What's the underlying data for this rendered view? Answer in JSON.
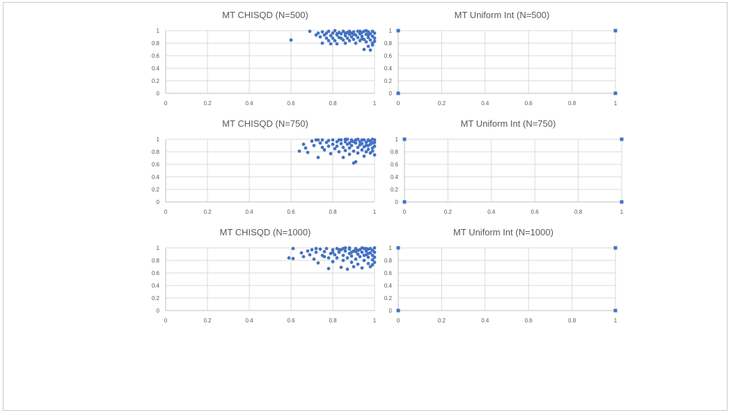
{
  "colors": {
    "marker": "#4472c4",
    "grid": "#d9d9d9",
    "axis": "#bfbfbf",
    "text": "#595959"
  },
  "chart_data": [
    {
      "type": "scatter",
      "title": "MT CHISQD (N=500)",
      "marker": "circle",
      "xlim": [
        0,
        1
      ],
      "ylim": [
        0,
        1
      ],
      "xticks": [
        "0",
        "0.2",
        "0.4",
        "0.6",
        "0.8",
        "1"
      ],
      "yticks": [
        "0",
        "0.2",
        "0.4",
        "0.6",
        "0.8",
        "1"
      ],
      "grid": true,
      "points": [
        [
          0.6,
          0.85
        ],
        [
          0.69,
          0.99
        ],
        [
          0.72,
          0.93
        ],
        [
          0.73,
          0.96
        ],
        [
          0.74,
          0.9
        ],
        [
          0.75,
          0.98
        ],
        [
          0.75,
          0.8
        ],
        [
          0.76,
          0.93
        ],
        [
          0.77,
          0.88
        ],
        [
          0.77,
          0.96
        ],
        [
          0.78,
          0.99
        ],
        [
          0.78,
          0.84
        ],
        [
          0.79,
          0.92
        ],
        [
          0.79,
          0.79
        ],
        [
          0.8,
          0.96
        ],
        [
          0.8,
          0.88
        ],
        [
          0.81,
          1.0
        ],
        [
          0.81,
          0.84
        ],
        [
          0.82,
          0.93
        ],
        [
          0.82,
          0.79
        ],
        [
          0.83,
          0.97
        ],
        [
          0.83,
          0.89
        ],
        [
          0.84,
          0.95
        ],
        [
          0.85,
          0.85
        ],
        [
          0.85,
          0.99
        ],
        [
          0.86,
          0.92
        ],
        [
          0.86,
          0.8
        ],
        [
          0.87,
          0.97
        ],
        [
          0.87,
          0.88
        ],
        [
          0.88,
          0.94
        ],
        [
          0.88,
          0.84
        ],
        [
          0.88,
          0.99
        ],
        [
          0.89,
          0.9
        ],
        [
          0.89,
          0.96
        ],
        [
          0.9,
          0.86
        ],
        [
          0.9,
          0.98
        ],
        [
          0.91,
          0.93
        ],
        [
          0.91,
          0.8
        ],
        [
          0.92,
          0.99
        ],
        [
          0.92,
          0.89
        ],
        [
          0.93,
          0.95
        ],
        [
          0.93,
          0.84
        ],
        [
          0.94,
          0.97
        ],
        [
          0.94,
          0.91
        ],
        [
          0.95,
          0.99
        ],
        [
          0.95,
          0.86
        ],
        [
          0.95,
          0.7
        ],
        [
          0.96,
          0.94
        ],
        [
          0.96,
          0.82
        ],
        [
          0.97,
          0.98
        ],
        [
          0.97,
          0.89
        ],
        [
          0.97,
          0.75
        ],
        [
          0.98,
          0.95
        ],
        [
          0.98,
          0.69
        ],
        [
          0.98,
          0.85
        ],
        [
          0.99,
          0.99
        ],
        [
          0.99,
          0.91
        ],
        [
          0.99,
          0.8
        ],
        [
          1.0,
          0.96
        ],
        [
          1.0,
          0.88
        ],
        [
          1.0,
          0.83
        ],
        [
          0.99,
          0.77
        ],
        [
          0.96,
          1.0
        ],
        [
          0.93,
          0.99
        ],
        [
          0.9,
          0.94
        ],
        [
          0.86,
          0.96
        ],
        [
          0.84,
          0.88
        ],
        [
          0.82,
          0.95
        ],
        [
          0.97,
          0.93
        ],
        [
          0.94,
          0.87
        ]
      ]
    },
    {
      "type": "scatter",
      "title": "MT Uniform Int (N=500)",
      "marker": "square",
      "xlim": [
        0,
        1
      ],
      "ylim": [
        0,
        1
      ],
      "xticks": [
        "0",
        "0.2",
        "0.4",
        "0.6",
        "0.8",
        "1"
      ],
      "yticks": [
        "0",
        "0.2",
        "0.4",
        "0.6",
        "0.8",
        "1"
      ],
      "grid": true,
      "points": [
        [
          0,
          0
        ],
        [
          0,
          1
        ],
        [
          1,
          0
        ],
        [
          1,
          1
        ]
      ]
    },
    {
      "type": "scatter",
      "title": "MT CHISQD (N=750)",
      "marker": "circle",
      "xlim": [
        0,
        1
      ],
      "ylim": [
        0,
        1
      ],
      "xticks": [
        "0",
        "0.2",
        "0.4",
        "0.6",
        "0.8",
        "1"
      ],
      "yticks": [
        "0",
        "0.2",
        "0.4",
        "0.6",
        "0.8",
        "1"
      ],
      "grid": true,
      "points": [
        [
          0.64,
          0.81
        ],
        [
          0.66,
          0.92
        ],
        [
          0.67,
          0.86
        ],
        [
          0.68,
          0.79
        ],
        [
          0.7,
          0.97
        ],
        [
          0.71,
          0.9
        ],
        [
          0.72,
          0.99
        ],
        [
          0.73,
          0.71
        ],
        [
          0.74,
          0.94
        ],
        [
          0.75,
          0.87
        ],
        [
          0.75,
          0.99
        ],
        [
          0.76,
          0.83
        ],
        [
          0.77,
          0.95
        ],
        [
          0.78,
          0.89
        ],
        [
          0.79,
          0.77
        ],
        [
          0.8,
          0.99
        ],
        [
          0.8,
          0.92
        ],
        [
          0.81,
          0.85
        ],
        [
          0.82,
          0.96
        ],
        [
          0.83,
          0.8
        ],
        [
          0.84,
          0.93
        ],
        [
          0.84,
          0.99
        ],
        [
          0.85,
          0.87
        ],
        [
          0.85,
          0.71
        ],
        [
          0.86,
          0.96
        ],
        [
          0.86,
          0.82
        ],
        [
          0.87,
          0.92
        ],
        [
          0.87,
          1.0
        ],
        [
          0.88,
          0.86
        ],
        [
          0.88,
          0.76
        ],
        [
          0.89,
          0.97
        ],
        [
          0.89,
          0.9
        ],
        [
          0.9,
          0.81
        ],
        [
          0.9,
          0.62
        ],
        [
          0.91,
          0.94
        ],
        [
          0.91,
          0.99
        ],
        [
          0.91,
          0.64
        ],
        [
          0.92,
          0.87
        ],
        [
          0.92,
          0.78
        ],
        [
          0.93,
          0.96
        ],
        [
          0.93,
          0.91
        ],
        [
          0.94,
          0.83
        ],
        [
          0.94,
          0.99
        ],
        [
          0.95,
          0.88
        ],
        [
          0.95,
          0.73
        ],
        [
          0.96,
          0.95
        ],
        [
          0.96,
          0.8
        ],
        [
          0.97,
          0.99
        ],
        [
          0.97,
          0.9
        ],
        [
          0.97,
          0.84
        ],
        [
          0.98,
          0.97
        ],
        [
          0.98,
          0.78
        ],
        [
          0.98,
          0.92
        ],
        [
          0.99,
          1.0
        ],
        [
          0.99,
          0.86
        ],
        [
          0.99,
          0.81
        ],
        [
          1.0,
          0.95
        ],
        [
          1.0,
          0.89
        ],
        [
          1.0,
          0.75
        ],
        [
          1.0,
          0.99
        ],
        [
          0.83,
          0.99
        ],
        [
          0.86,
          1.0
        ],
        [
          0.89,
          0.99
        ],
        [
          0.92,
          1.0
        ],
        [
          0.95,
          0.99
        ],
        [
          0.9,
          0.96
        ],
        [
          0.94,
          0.93
        ],
        [
          0.96,
          0.9
        ],
        [
          0.82,
          0.89
        ],
        [
          0.78,
          0.98
        ],
        [
          0.73,
          0.99
        ],
        [
          0.88,
          0.94
        ],
        [
          0.99,
          0.94
        ],
        [
          0.97,
          0.98
        ]
      ]
    },
    {
      "type": "scatter",
      "title": "MT Uniform Int (N=750)",
      "marker": "square",
      "xlim": [
        0,
        1
      ],
      "ylim": [
        0,
        1
      ],
      "xticks": [
        "0",
        "0.2",
        "0.4",
        "0.6",
        "0.8",
        "1"
      ],
      "yticks": [
        "0",
        "0.2",
        "0.4",
        "0.6",
        "0.8",
        "1"
      ],
      "grid": true,
      "points": [
        [
          0,
          0
        ],
        [
          0,
          1
        ],
        [
          1,
          0
        ],
        [
          1,
          1
        ]
      ]
    },
    {
      "type": "scatter",
      "title": "MT CHISQD (N=1000)",
      "marker": "circle",
      "xlim": [
        0,
        1
      ],
      "ylim": [
        0,
        1
      ],
      "xticks": [
        "0",
        "0.2",
        "0.4",
        "0.6",
        "0.8",
        "1"
      ],
      "yticks": [
        "0",
        "0.2",
        "0.4",
        "0.6",
        "0.8",
        "1"
      ],
      "grid": true,
      "points": [
        [
          0.59,
          0.84
        ],
        [
          0.61,
          0.83
        ],
        [
          0.61,
          0.99
        ],
        [
          0.65,
          0.92
        ],
        [
          0.66,
          0.86
        ],
        [
          0.68,
          0.95
        ],
        [
          0.69,
          0.89
        ],
        [
          0.7,
          0.97
        ],
        [
          0.71,
          0.82
        ],
        [
          0.72,
          0.93
        ],
        [
          0.73,
          0.76
        ],
        [
          0.74,
          0.98
        ],
        [
          0.75,
          0.88
        ],
        [
          0.76,
          0.94
        ],
        [
          0.77,
          0.99
        ],
        [
          0.78,
          0.67
        ],
        [
          0.78,
          0.84
        ],
        [
          0.79,
          0.91
        ],
        [
          0.8,
          0.97
        ],
        [
          0.8,
          0.78
        ],
        [
          0.81,
          0.89
        ],
        [
          0.82,
          0.99
        ],
        [
          0.82,
          0.84
        ],
        [
          0.83,
          0.93
        ],
        [
          0.84,
          0.69
        ],
        [
          0.84,
          0.97
        ],
        [
          0.85,
          0.88
        ],
        [
          0.85,
          0.8
        ],
        [
          0.86,
          0.95
        ],
        [
          0.86,
          1.0
        ],
        [
          0.87,
          0.84
        ],
        [
          0.87,
          0.66
        ],
        [
          0.88,
          0.91
        ],
        [
          0.88,
          0.98
        ],
        [
          0.89,
          0.77
        ],
        [
          0.89,
          0.87
        ],
        [
          0.9,
          0.95
        ],
        [
          0.9,
          0.7
        ],
        [
          0.91,
          0.99
        ],
        [
          0.91,
          0.82
        ],
        [
          0.92,
          0.9
        ],
        [
          0.92,
          0.74
        ],
        [
          0.93,
          0.97
        ],
        [
          0.93,
          0.86
        ],
        [
          0.94,
          0.93
        ],
        [
          0.94,
          0.68
        ],
        [
          0.95,
          0.99
        ],
        [
          0.95,
          0.8
        ],
        [
          0.96,
          0.89
        ],
        [
          0.96,
          0.95
        ],
        [
          0.97,
          0.75
        ],
        [
          0.97,
          0.98
        ],
        [
          0.97,
          0.85
        ],
        [
          0.98,
          0.92
        ],
        [
          0.98,
          0.7
        ],
        [
          0.98,
          0.99
        ],
        [
          0.99,
          0.81
        ],
        [
          0.99,
          0.88
        ],
        [
          0.99,
          0.96
        ],
        [
          1.0,
          0.77
        ],
        [
          1.0,
          0.93
        ],
        [
          1.0,
          1.0
        ],
        [
          1.0,
          0.85
        ],
        [
          0.85,
          0.99
        ],
        [
          0.88,
          1.0
        ],
        [
          0.91,
          0.94
        ],
        [
          0.94,
          1.0
        ],
        [
          0.96,
          0.99
        ],
        [
          0.92,
          0.96
        ],
        [
          0.89,
          0.93
        ],
        [
          0.95,
          0.88
        ],
        [
          0.97,
          0.91
        ],
        [
          0.99,
          0.73
        ],
        [
          0.83,
          0.97
        ],
        [
          0.8,
          0.93
        ],
        [
          0.76,
          0.86
        ],
        [
          0.72,
          0.99
        ]
      ]
    },
    {
      "type": "scatter",
      "title": "MT Uniform Int (N=1000)",
      "marker": "square",
      "xlim": [
        0,
        1
      ],
      "ylim": [
        0,
        1
      ],
      "xticks": [
        "0",
        "0.2",
        "0.4",
        "0.6",
        "0.8",
        "1"
      ],
      "yticks": [
        "0",
        "0.2",
        "0.4",
        "0.6",
        "0.8",
        "1"
      ],
      "grid": true,
      "points": [
        [
          0,
          0
        ],
        [
          0,
          1
        ],
        [
          1,
          0
        ],
        [
          1,
          1
        ]
      ]
    }
  ]
}
